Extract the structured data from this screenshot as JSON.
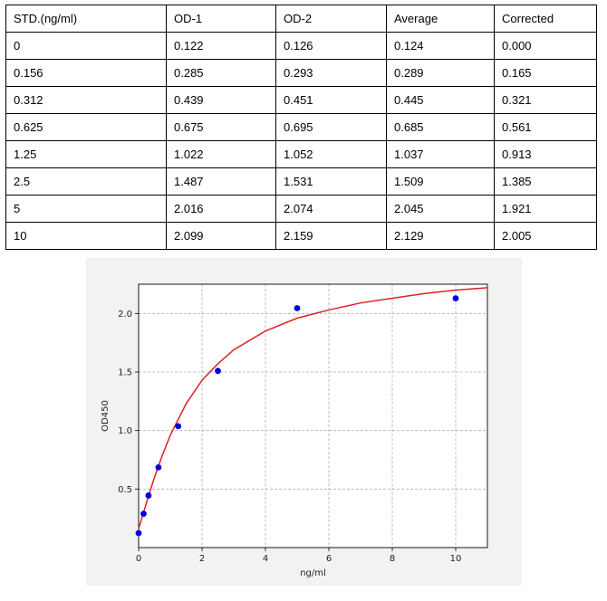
{
  "table": {
    "headers": [
      "STD.(ng/ml)",
      "OD-1",
      "OD-2",
      "Average",
      "Corrected"
    ],
    "rows": [
      [
        "0",
        "0.122",
        "0.126",
        "0.124",
        "0.000"
      ],
      [
        "0.156",
        "0.285",
        "0.293",
        "0.289",
        "0.165"
      ],
      [
        "0.312",
        "0.439",
        "0.451",
        "0.445",
        "0.321"
      ],
      [
        "0.625",
        "0.675",
        "0.695",
        "0.685",
        "0.561"
      ],
      [
        "1.25",
        "1.022",
        "1.052",
        "1.037",
        "0.913"
      ],
      [
        "2.5",
        "1.487",
        "1.531",
        "1.509",
        "1.385"
      ],
      [
        "5",
        "2.016",
        "2.074",
        "2.045",
        "1.921"
      ],
      [
        "10",
        "2.099",
        "2.159",
        "2.129",
        "2.005"
      ]
    ]
  },
  "chart_data": {
    "type": "scatter",
    "xlabel": "ng/ml",
    "ylabel": "OD450",
    "xlim": [
      0,
      11
    ],
    "ylim": [
      0.0,
      2.25
    ],
    "xticks": [
      0,
      2,
      4,
      6,
      8,
      10
    ],
    "yticks": [
      0.5,
      1.0,
      1.5,
      2.0
    ],
    "ytick_labels": [
      "0.5",
      "1.0",
      "1.5",
      "2.0"
    ],
    "grid": true,
    "points": {
      "x": [
        0,
        0.156,
        0.312,
        0.625,
        1.25,
        2.5,
        5,
        10
      ],
      "y": [
        0.124,
        0.289,
        0.445,
        0.685,
        1.037,
        1.509,
        2.045,
        2.129
      ],
      "color": "#0000dd"
    },
    "fit_curve": {
      "color": "#dd2222",
      "x": [
        0,
        0.1,
        0.2,
        0.3,
        0.5,
        0.75,
        1,
        1.5,
        2,
        2.5,
        3,
        4,
        5,
        6,
        7,
        8,
        9,
        10,
        11
      ],
      "y": [
        0.16,
        0.25,
        0.34,
        0.43,
        0.6,
        0.79,
        0.96,
        1.23,
        1.43,
        1.57,
        1.69,
        1.85,
        1.96,
        2.03,
        2.09,
        2.13,
        2.17,
        2.2,
        2.22
      ]
    }
  }
}
